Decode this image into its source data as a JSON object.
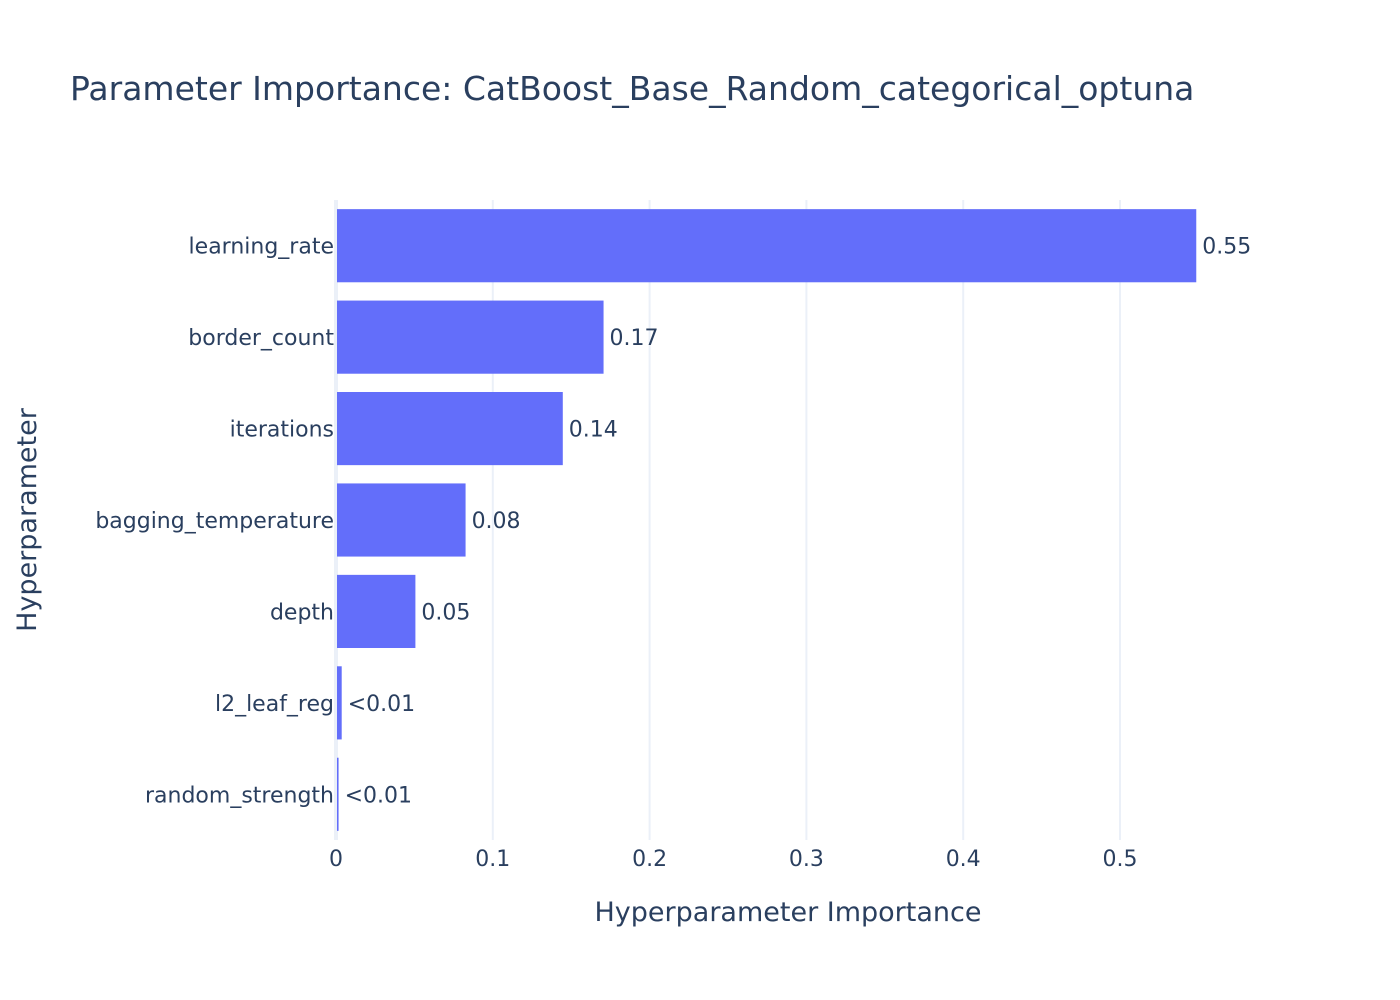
{
  "chart_data": {
    "type": "bar",
    "orientation": "horizontal",
    "title": "Parameter Importance: CatBoost_Base_Random_categorical_optuna",
    "xlabel": "Hyperparameter Importance",
    "ylabel": "Hyperparameter",
    "xlim": [
      0,
      0.59
    ],
    "x_ticks": [
      "0",
      "0.1",
      "0.2",
      "0.3",
      "0.4",
      "0.5"
    ],
    "x_tick_values": [
      0,
      0.1,
      0.2,
      0.3,
      0.4,
      0.5
    ],
    "categories": [
      "learning_rate",
      "border_count",
      "iterations",
      "bagging_temperature",
      "depth",
      "l2_leaf_reg",
      "random_strength"
    ],
    "values": [
      0.548,
      0.17,
      0.144,
      0.082,
      0.05,
      0.003,
      0.001
    ],
    "labels": [
      "0.55",
      "0.17",
      "0.14",
      "0.08",
      "0.05",
      "<0.01",
      "<0.01"
    ],
    "bar_color": "#636efa",
    "grid": true
  }
}
